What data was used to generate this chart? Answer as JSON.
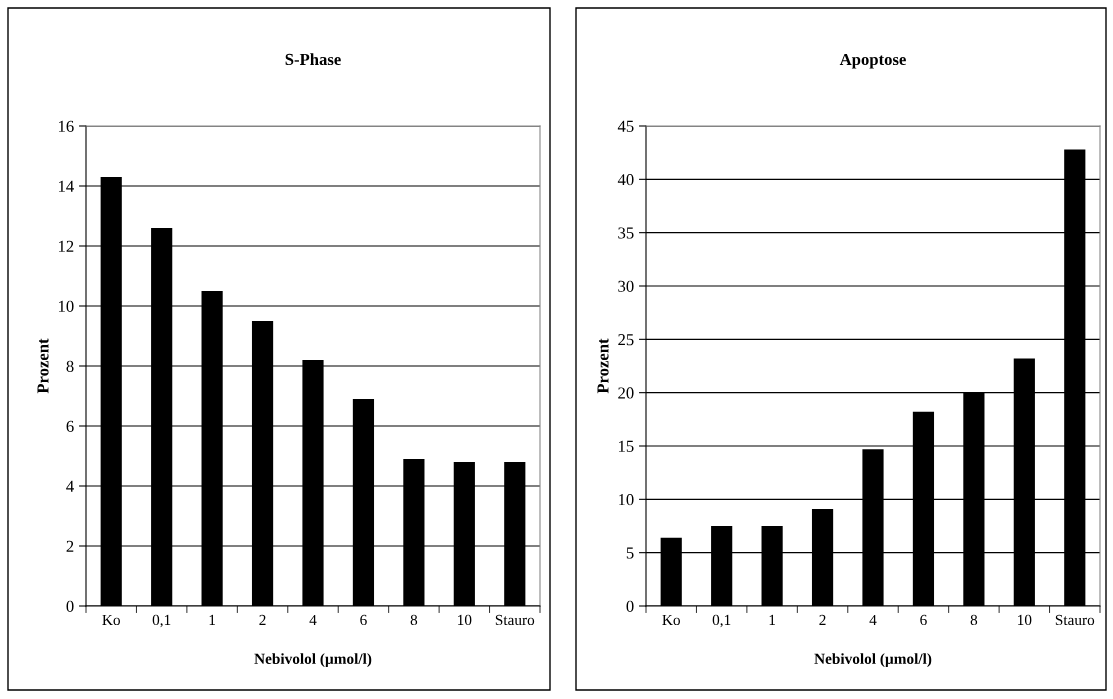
{
  "chart_data": [
    {
      "type": "bar",
      "title": "S-Phase",
      "xlabel": "Nebivolol (µmol/l)",
      "ylabel": "Prozent",
      "categories": [
        "Ko",
        "0,1",
        "1",
        "2",
        "4",
        "6",
        "8",
        "10",
        "Stauro"
      ],
      "values": [
        14.3,
        12.6,
        10.5,
        9.5,
        8.2,
        6.9,
        4.9,
        4.8,
        4.8
      ],
      "color": "#000000",
      "ylim": [
        0,
        16
      ],
      "yticks": [
        0,
        2,
        4,
        6,
        8,
        10,
        12,
        14,
        16
      ],
      "grid": "y"
    },
    {
      "type": "bar",
      "title": "Apoptose",
      "xlabel": "Nebivolol (µmol/l)",
      "ylabel": "Prozent",
      "categories": [
        "Ko",
        "0,1",
        "1",
        "2",
        "4",
        "6",
        "8",
        "10",
        "Stauro"
      ],
      "values": [
        6.4,
        7.5,
        7.5,
        9.1,
        14.7,
        18.2,
        20.0,
        23.2,
        42.8
      ],
      "color": "#000000",
      "ylim": [
        0,
        45
      ],
      "yticks": [
        0,
        5,
        10,
        15,
        20,
        25,
        30,
        35,
        40,
        45
      ],
      "grid": "y"
    }
  ]
}
